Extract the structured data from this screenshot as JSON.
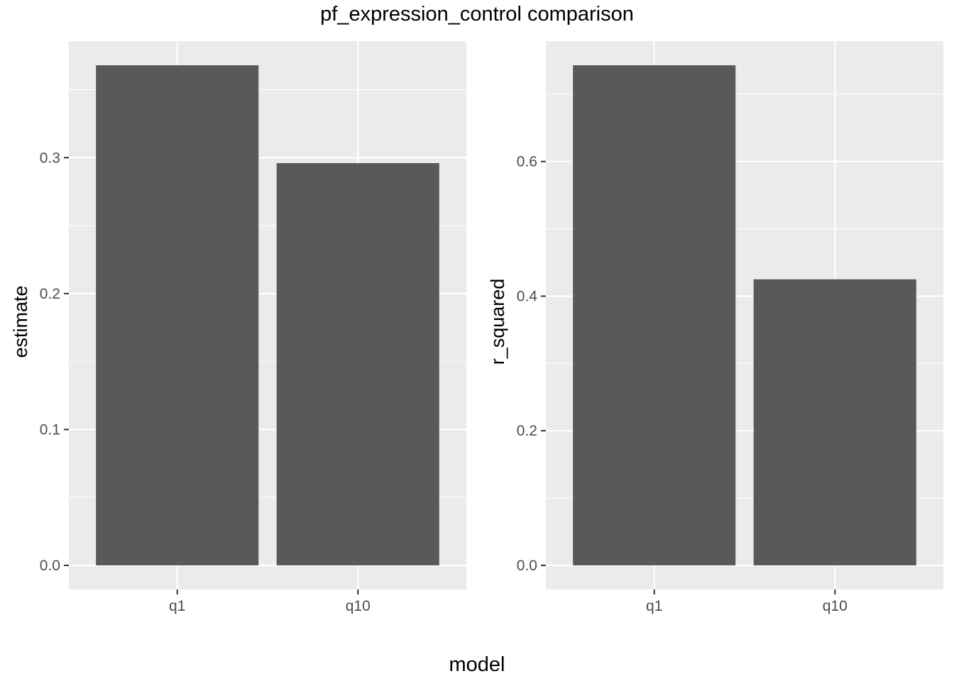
{
  "title": "pf_expression_control comparison",
  "xlabel": "model",
  "colors": {
    "panel_bg": "#ebebeb",
    "grid": "#ffffff",
    "bar": "#595959",
    "tick_text": "#4d4d4d",
    "tick_mark": "#333333"
  },
  "chart_data": [
    {
      "type": "bar",
      "categories": [
        "q1",
        "q10"
      ],
      "values": [
        0.368,
        0.296
      ],
      "ylabel": "estimate",
      "ylim": [
        0,
        0.386
      ],
      "yticks": [
        0.0,
        0.1,
        0.2,
        0.3
      ],
      "ytick_labels": [
        "0.0",
        "0.1",
        "0.2",
        "0.3"
      ],
      "grid": true
    },
    {
      "type": "bar",
      "categories": [
        "q1",
        "q10"
      ],
      "values": [
        0.743,
        0.425
      ],
      "ylabel": "r_squared",
      "ylim": [
        0,
        0.78
      ],
      "yticks": [
        0.0,
        0.2,
        0.4,
        0.6
      ],
      "ytick_labels": [
        "0.0",
        "0.2",
        "0.4",
        "0.6"
      ],
      "grid": true
    }
  ]
}
